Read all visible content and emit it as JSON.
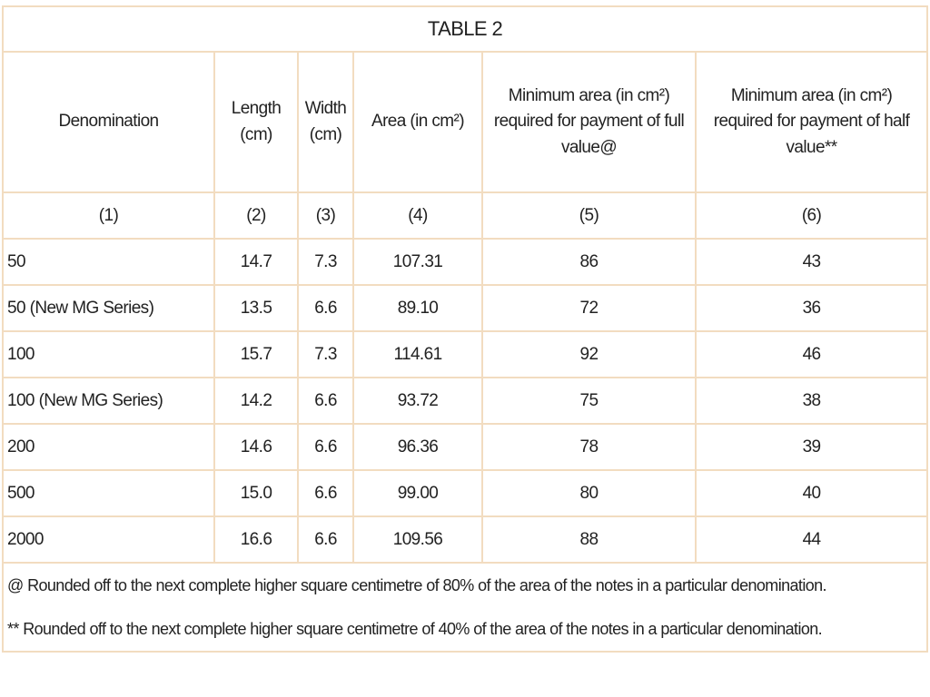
{
  "table": {
    "title": "TABLE 2",
    "headers": [
      "Denomination",
      "Length (cm)",
      "Width (cm)",
      "Area (in cm²)",
      "Minimum area (in cm²) required for payment of full value@",
      "Minimum area (in cm²) required for payment of half value**"
    ],
    "column_numbers": [
      "(1)",
      "(2)",
      "(3)",
      "(4)",
      "(5)",
      "(6)"
    ],
    "rows": [
      [
        "50",
        "14.7",
        "7.3",
        "107.31",
        "86",
        "43"
      ],
      [
        "50 (New MG Series)",
        "13.5",
        "6.6",
        "89.10",
        "72",
        "36"
      ],
      [
        "100",
        "15.7",
        "7.3",
        "114.61",
        "92",
        "46"
      ],
      [
        "100 (New MG Series)",
        "14.2",
        "6.6",
        "93.72",
        "75",
        "38"
      ],
      [
        "200",
        "14.6",
        "6.6",
        "96.36",
        "78",
        "39"
      ],
      [
        "500",
        "15.0",
        "6.6",
        "99.00",
        "80",
        "40"
      ],
      [
        "2000",
        "16.6",
        "6.6",
        "109.56",
        "88",
        "44"
      ]
    ],
    "footnotes": [
      "@ Rounded off to the next complete higher square centimetre of 80% of the area of the notes in a particular denomination.",
      "** Rounded off to the next complete higher square centimetre of 40% of the area of the notes in a particular denomination."
    ]
  }
}
